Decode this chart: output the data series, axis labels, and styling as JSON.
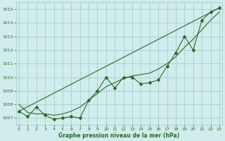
{
  "xlabel": "Graphe pression niveau de la mer (hPa)",
  "xlim_min": 0,
  "xlim_max": 23,
  "ylim_min": 1006.5,
  "ylim_max": 1015.5,
  "yticks": [
    1007,
    1008,
    1009,
    1010,
    1011,
    1012,
    1013,
    1014,
    1015
  ],
  "xticks": [
    0,
    1,
    2,
    3,
    4,
    5,
    6,
    7,
    8,
    9,
    10,
    11,
    12,
    13,
    14,
    15,
    16,
    17,
    18,
    19,
    20,
    21,
    22,
    23
  ],
  "background_color": "#d0ecec",
  "grid_color": "#a0c8c8",
  "line_color": "#2d6a2d",
  "x_hours": [
    0,
    1,
    2,
    3,
    4,
    5,
    6,
    7,
    8,
    9,
    10,
    11,
    12,
    13,
    14,
    15,
    16,
    17,
    18,
    19,
    20,
    21,
    22,
    23
  ],
  "y_data": [
    1007.5,
    1007.1,
    1007.8,
    1007.2,
    1006.9,
    1007.0,
    1007.1,
    1007.0,
    1008.3,
    1009.0,
    1010.0,
    1009.2,
    1010.0,
    1010.0,
    1009.5,
    1009.6,
    1009.8,
    1010.8,
    1011.8,
    1013.0,
    1012.0,
    1014.2,
    1014.8,
    1015.1
  ],
  "y_smooth": [
    1008.0,
    1007.4,
    1007.3,
    1007.3,
    1007.2,
    1007.3,
    1007.5,
    1007.8,
    1008.3,
    1008.8,
    1009.3,
    1009.6,
    1009.9,
    1010.1,
    1010.2,
    1010.3,
    1010.6,
    1011.0,
    1011.5,
    1012.2,
    1012.8,
    1013.5,
    1014.2,
    1014.8
  ],
  "trend_x0": 0,
  "trend_y0": 1007.5,
  "trend_x1": 23,
  "trend_y1": 1015.1
}
